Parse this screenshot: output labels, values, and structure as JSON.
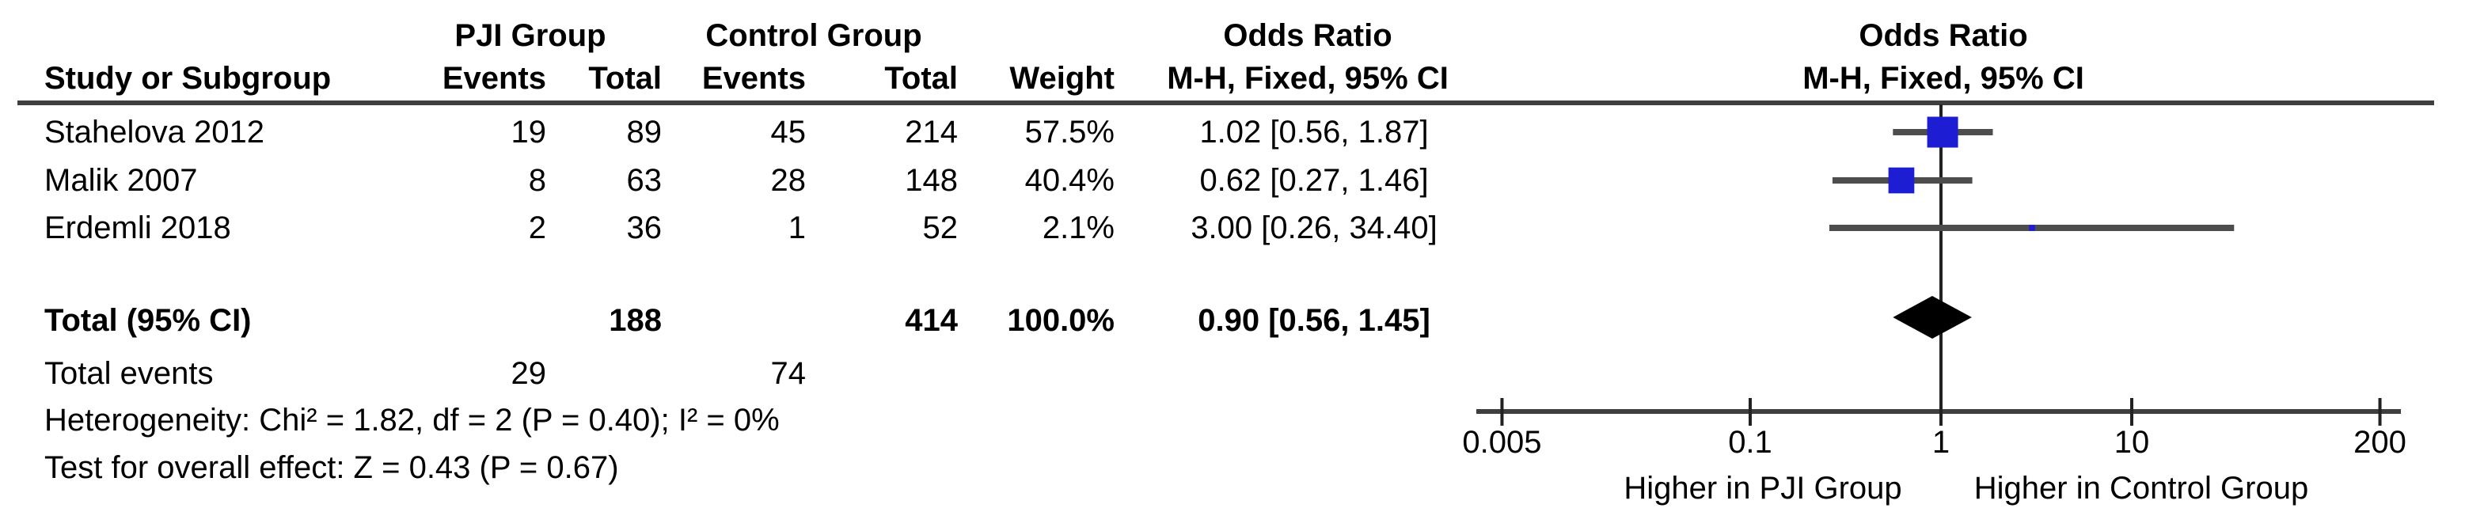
{
  "colors": {
    "marker_blue": "#1D1DD3",
    "diamond_black": "#000000",
    "whisker_gray": "#4D4D4D",
    "axis_gray": "#3F3F3F",
    "line_black": "#222222",
    "text_black": "#000000"
  },
  "table": {
    "group_headers": {
      "pji": "PJI Group",
      "control": "Control Group",
      "or_left": "Odds Ratio",
      "or_right": "Odds Ratio"
    },
    "col_headers": {
      "study": "Study or Subgroup",
      "events_pji": "Events",
      "total_pji": "Total",
      "events_control": "Events",
      "total_control": "Total",
      "weight": "Weight",
      "ci_left": "M-H, Fixed, 95% CI",
      "ci_right": "M-H, Fixed, 95% CI"
    },
    "rows": [
      {
        "study": "Stahelova 2012",
        "events_pji": "19",
        "total_pji": "89",
        "events_control": "45",
        "total_control": "214",
        "weight": "57.5%",
        "ci": "1.02 [0.56, 1.87]"
      },
      {
        "study": "Malik 2007",
        "events_pji": "8",
        "total_pji": "63",
        "events_control": "28",
        "total_control": "148",
        "weight": "40.4%",
        "ci": "0.62 [0.27, 1.46]"
      },
      {
        "study": "Erdemli 2018",
        "events_pji": "2",
        "total_pji": "36",
        "events_control": "1",
        "total_control": "52",
        "weight": "2.1%",
        "ci": "3.00 [0.26, 34.40]"
      }
    ],
    "total_row": {
      "label": "Total (95% CI)",
      "total_pji": "188",
      "total_control": "414",
      "weight": "100.0%",
      "ci": "0.90 [0.56, 1.45]"
    },
    "total_events": {
      "label": "Total events",
      "events_pji": "29",
      "events_control": "74"
    },
    "heterogeneity": "Heterogeneity: Chi² = 1.82, df = 2 (P = 0.40); I² = 0%",
    "overall_effect": "Test for overall effect: Z = 0.43 (P = 0.67)"
  },
  "chart_data": {
    "type": "scatter",
    "variant": "forest-plot",
    "effect_measure": "Odds Ratio, M-H, Fixed, 95% CI",
    "x_scale": "log",
    "xlim": [
      0.005,
      200
    ],
    "x_ticks": [
      0.005,
      0.1,
      1,
      10,
      200
    ],
    "null_line": 1,
    "footer_left": "Higher in PJI Group",
    "footer_right": "Higher in Control Group",
    "studies": [
      {
        "name": "Stahelova 2012",
        "or": 1.02,
        "ci_low": 0.56,
        "ci_high": 1.87,
        "weight_pct": 57.5
      },
      {
        "name": "Malik 2007",
        "or": 0.62,
        "ci_low": 0.27,
        "ci_high": 1.46,
        "weight_pct": 40.4
      },
      {
        "name": "Erdemli 2018",
        "or": 3.0,
        "ci_low": 0.26,
        "ci_high": 34.4,
        "weight_pct": 2.1
      }
    ],
    "total": {
      "label": "Total (95% CI)",
      "or": 0.9,
      "ci_low": 0.56,
      "ci_high": 1.45,
      "weight_pct": 100.0
    },
    "heterogeneity": "Chi² = 1.82, df = 2 (P = 0.40); I² = 0%",
    "overall_effect": "Z = 0.43 (P = 0.67)"
  }
}
